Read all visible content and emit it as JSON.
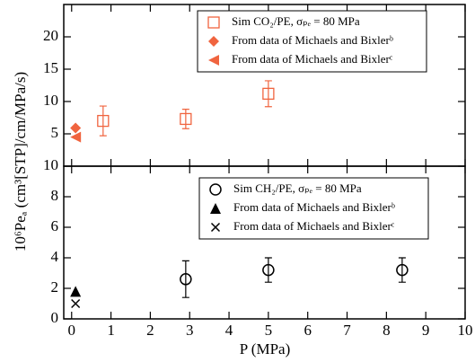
{
  "chart_data": [
    {
      "type": "scatter",
      "xlim": [
        -0.2,
        10
      ],
      "xticks": [
        0,
        1,
        2,
        3,
        4,
        5,
        6,
        7,
        8,
        9,
        10
      ],
      "ylim": [
        0,
        25
      ],
      "yticks": [
        5,
        10,
        15,
        20
      ],
      "legend": "top-right",
      "series": [
        {
          "name": "Sim CO₂/PE, σₚₑ = 80 MPa",
          "color": "#f0643f",
          "marker": "square-open",
          "x": [
            0.8,
            2.9,
            5.0
          ],
          "values": [
            7.0,
            7.3,
            11.2
          ],
          "errors": [
            2.3,
            1.5,
            2.0
          ]
        },
        {
          "name": "From data of Michaels and Bixlerᵇ",
          "color": "#f0643f",
          "marker": "diamond",
          "x": [
            0.1
          ],
          "values": [
            5.9
          ]
        },
        {
          "name": "From data of Michaels and Bixlerᶜ",
          "color": "#f0643f",
          "marker": "triangle-left",
          "x": [
            0.1
          ],
          "values": [
            4.5
          ]
        }
      ]
    },
    {
      "type": "scatter",
      "x_label": "P (MPa)",
      "y_label": "10⁶Peₐ (cm³[STP]/cm/MPa/s)",
      "xlim": [
        -0.2,
        10
      ],
      "xticks": [
        0,
        1,
        2,
        3,
        4,
        5,
        6,
        7,
        8,
        9,
        10
      ],
      "ylim": [
        0,
        10
      ],
      "yticks": [
        0,
        2,
        4,
        6,
        8,
        10
      ],
      "legend": "top-right",
      "series": [
        {
          "name": "Sim CH₂/PE, σₚₑ = 80 MPa",
          "color": "#000000",
          "marker": "circle-open",
          "x": [
            2.9,
            5.0,
            8.4
          ],
          "values": [
            2.6,
            3.2,
            3.2
          ],
          "errors": [
            1.2,
            0.8,
            0.8
          ]
        },
        {
          "name": "From data of Michaels and Bixlerᵇ",
          "color": "#000000",
          "marker": "triangle-up",
          "x": [
            0.1
          ],
          "values": [
            1.8
          ]
        },
        {
          "name": "From data of Michaels and Bixlerᶜ",
          "color": "#000000",
          "marker": "cross",
          "x": [
            0.1
          ],
          "values": [
            1.0
          ]
        }
      ]
    }
  ]
}
